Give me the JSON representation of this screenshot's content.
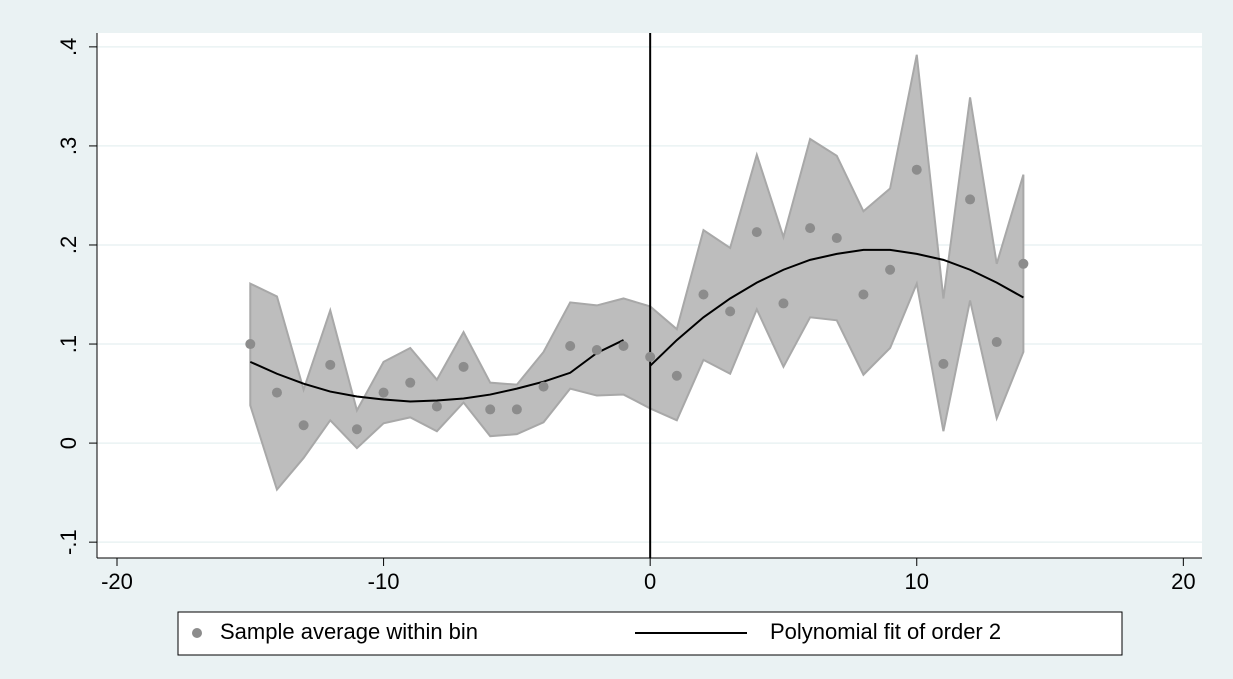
{
  "chart_data": {
    "type": "scatter",
    "x": [
      -15,
      -14,
      -13,
      -12,
      -11,
      -10,
      -9,
      -8,
      -7,
      -6,
      -5,
      -4,
      -3,
      -2,
      -1,
      0,
      1,
      2,
      3,
      4,
      5,
      6,
      7,
      8,
      9,
      10,
      11,
      12,
      13,
      14
    ],
    "series": [
      {
        "name": "Sample average within bin",
        "color": "#8c8c8c",
        "values": [
          0.1,
          0.051,
          0.018,
          0.079,
          0.014,
          0.051,
          0.061,
          0.037,
          0.077,
          0.034,
          0.034,
          0.057,
          0.098,
          0.094,
          0.098,
          0.087,
          0.068,
          0.15,
          0.133,
          0.213,
          0.141,
          0.217,
          0.207,
          0.15,
          0.175,
          0.276,
          0.08,
          0.246,
          0.102,
          0.181
        ]
      },
      {
        "name": "Polynomial fit of order 2",
        "color": "#000000",
        "values": [
          0.082,
          0.07,
          0.06,
          0.052,
          0.047,
          0.044,
          0.042,
          0.043,
          0.045,
          0.049,
          0.055,
          0.062,
          0.071,
          0.091,
          0.104,
          0.078,
          0.104,
          0.127,
          0.146,
          0.162,
          0.175,
          0.185,
          0.191,
          0.195,
          0.195,
          0.191,
          0.185,
          0.175,
          0.162,
          0.147
        ]
      }
    ],
    "ci": {
      "color": "#bdbdbd",
      "upper": [
        0.161,
        0.148,
        0.054,
        0.134,
        0.033,
        0.082,
        0.096,
        0.064,
        0.112,
        0.061,
        0.059,
        0.092,
        0.142,
        0.139,
        0.146,
        0.138,
        0.115,
        0.215,
        0.197,
        0.291,
        0.208,
        0.307,
        0.29,
        0.234,
        0.257,
        0.392,
        0.146,
        0.349,
        0.181,
        0.271
      ],
      "lower": [
        0.038,
        -0.047,
        -0.015,
        0.023,
        -0.005,
        0.02,
        0.026,
        0.012,
        0.041,
        0.007,
        0.009,
        0.021,
        0.055,
        0.048,
        0.049,
        0.035,
        0.023,
        0.084,
        0.07,
        0.135,
        0.077,
        0.127,
        0.124,
        0.069,
        0.096,
        0.161,
        0.012,
        0.144,
        0.025,
        0.092
      ]
    },
    "cutoff": 0,
    "xlim": [
      -20.75,
      20.7
    ],
    "ylim": [
      -0.116,
      0.414
    ],
    "xticks": [
      -20,
      -10,
      0,
      10,
      20
    ],
    "yticks": [
      {
        "value": -0.1,
        "label": "-.1"
      },
      0,
      {
        "value": 0.1,
        "label": ".1"
      },
      {
        "value": 0.2,
        "label": ".2"
      },
      {
        "value": 0.3,
        "label": ".3"
      },
      {
        "value": 0.4,
        "label": ".4"
      }
    ],
    "grid": true
  }
}
